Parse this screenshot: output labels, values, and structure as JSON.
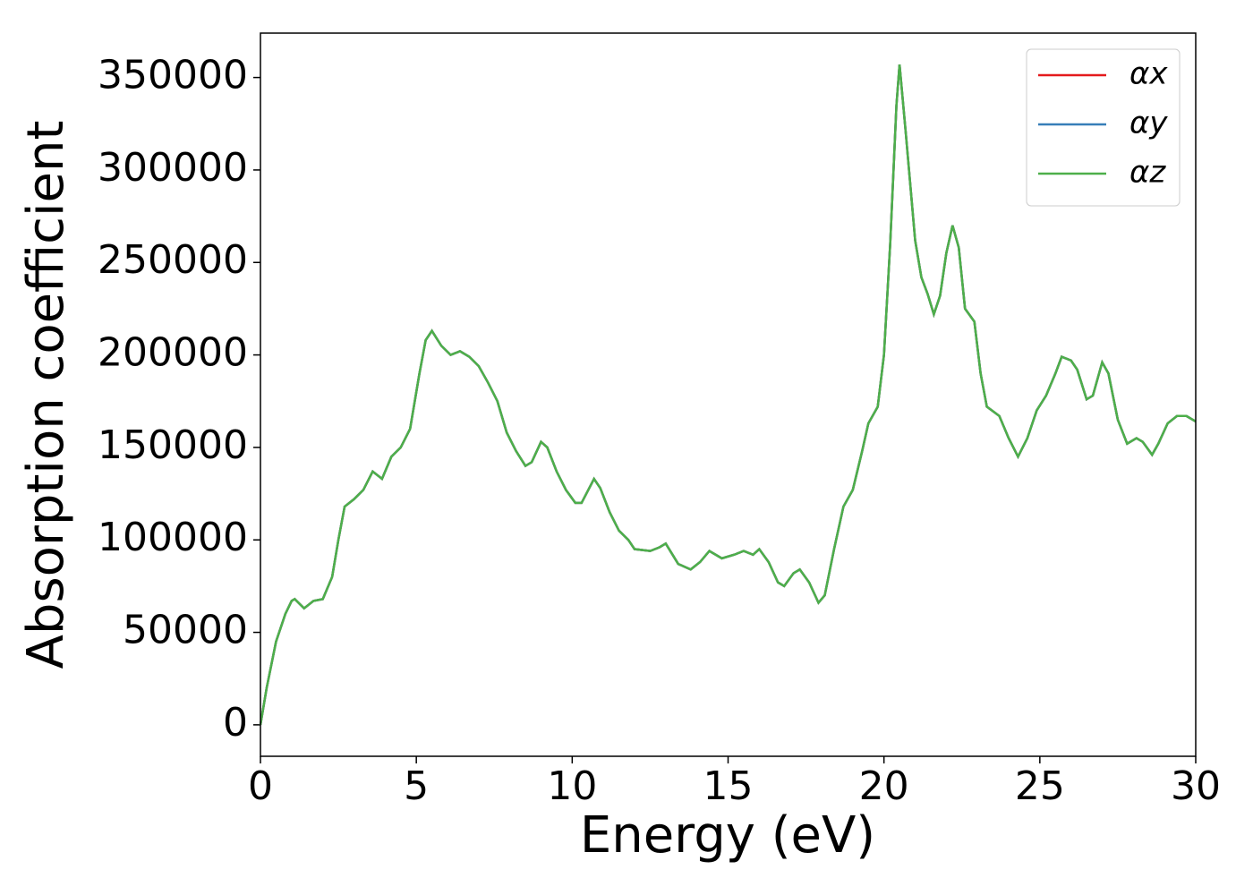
{
  "chart_data": {
    "type": "line",
    "xlabel": "Energy (eV)",
    "ylabel": "Absorption coefficient",
    "x": [
      0,
      0.2,
      0.5,
      0.8,
      1.0,
      1.1,
      1.4,
      1.7,
      2.0,
      2.3,
      2.5,
      2.7,
      3.0,
      3.3,
      3.6,
      3.9,
      4.2,
      4.5,
      4.8,
      5.1,
      5.3,
      5.5,
      5.8,
      6.1,
      6.4,
      6.7,
      7.0,
      7.3,
      7.6,
      7.9,
      8.2,
      8.5,
      8.7,
      9.0,
      9.2,
      9.5,
      9.8,
      10.1,
      10.3,
      10.7,
      10.9,
      11.2,
      11.5,
      11.8,
      12.0,
      12.5,
      12.8,
      13.0,
      13.4,
      13.8,
      14.1,
      14.4,
      14.8,
      15.2,
      15.5,
      15.8,
      16.0,
      16.3,
      16.6,
      16.8,
      17.1,
      17.3,
      17.6,
      17.9,
      18.1,
      18.4,
      18.7,
      19.0,
      19.3,
      19.5,
      19.8,
      20.0,
      20.2,
      20.4,
      20.5,
      20.7,
      21.0,
      21.2,
      21.4,
      21.6,
      21.8,
      22.0,
      22.2,
      22.4,
      22.6,
      22.9,
      23.1,
      23.3,
      23.7,
      24.0,
      24.3,
      24.6,
      24.9,
      25.2,
      25.5,
      25.7,
      26.0,
      26.2,
      26.5,
      26.7,
      27.0,
      27.2,
      27.5,
      27.8,
      28.1,
      28.3,
      28.6,
      28.8,
      29.1,
      29.4,
      29.7,
      30.0
    ],
    "series": [
      {
        "name": "αx",
        "color": "#e41a1c",
        "values": [
          0,
          20000,
          45000,
          60000,
          67000,
          68000,
          63000,
          67000,
          68000,
          80000,
          100000,
          118000,
          122000,
          127000,
          137000,
          133000,
          145000,
          150000,
          160000,
          190000,
          208000,
          213000,
          205000,
          200000,
          202000,
          199000,
          194000,
          185000,
          175000,
          158000,
          148000,
          140000,
          142000,
          153000,
          150000,
          137000,
          127000,
          120000,
          120000,
          133000,
          128000,
          115000,
          105000,
          100000,
          95000,
          94000,
          96000,
          98000,
          87000,
          84000,
          88000,
          94000,
          90000,
          92000,
          94000,
          92000,
          95000,
          88000,
          77000,
          75000,
          82000,
          84000,
          77000,
          66000,
          70000,
          95000,
          118000,
          127000,
          148000,
          163000,
          172000,
          200000,
          260000,
          335000,
          357000,
          320000,
          262000,
          242000,
          233000,
          222000,
          232000,
          255000,
          270000,
          258000,
          225000,
          218000,
          190000,
          172000,
          167000,
          155000,
          145000,
          155000,
          170000,
          178000,
          190000,
          199000,
          197000,
          192000,
          176000,
          178000,
          196000,
          190000,
          165000,
          152000,
          155000,
          153000,
          146000,
          152000,
          163000,
          167000,
          167000,
          164000
        ]
      },
      {
        "name": "αy",
        "color": "#377eb8",
        "values": [
          0,
          20000,
          45000,
          60000,
          67000,
          68000,
          63000,
          67000,
          68000,
          80000,
          100000,
          118000,
          122000,
          127000,
          137000,
          133000,
          145000,
          150000,
          160000,
          190000,
          208000,
          213000,
          205000,
          200000,
          202000,
          199000,
          194000,
          185000,
          175000,
          158000,
          148000,
          140000,
          142000,
          153000,
          150000,
          137000,
          127000,
          120000,
          120000,
          133000,
          128000,
          115000,
          105000,
          100000,
          95000,
          94000,
          96000,
          98000,
          87000,
          84000,
          88000,
          94000,
          90000,
          92000,
          94000,
          92000,
          95000,
          88000,
          77000,
          75000,
          82000,
          84000,
          77000,
          66000,
          70000,
          95000,
          118000,
          127000,
          148000,
          163000,
          172000,
          200000,
          260000,
          335000,
          357000,
          320000,
          262000,
          242000,
          233000,
          222000,
          232000,
          255000,
          270000,
          258000,
          225000,
          218000,
          190000,
          172000,
          167000,
          155000,
          145000,
          155000,
          170000,
          178000,
          190000,
          199000,
          197000,
          192000,
          176000,
          178000,
          196000,
          190000,
          165000,
          152000,
          155000,
          153000,
          146000,
          152000,
          163000,
          167000,
          167000,
          164000
        ]
      },
      {
        "name": "αz",
        "color": "#4daf4a",
        "values": [
          0,
          20000,
          45000,
          60000,
          67000,
          68000,
          63000,
          67000,
          68000,
          80000,
          100000,
          118000,
          122000,
          127000,
          137000,
          133000,
          145000,
          150000,
          160000,
          190000,
          208000,
          213000,
          205000,
          200000,
          202000,
          199000,
          194000,
          185000,
          175000,
          158000,
          148000,
          140000,
          142000,
          153000,
          150000,
          137000,
          127000,
          120000,
          120000,
          133000,
          128000,
          115000,
          105000,
          100000,
          95000,
          94000,
          96000,
          98000,
          87000,
          84000,
          88000,
          94000,
          90000,
          92000,
          94000,
          92000,
          95000,
          88000,
          77000,
          75000,
          82000,
          84000,
          77000,
          66000,
          70000,
          95000,
          118000,
          127000,
          148000,
          163000,
          172000,
          200000,
          260000,
          335000,
          357000,
          320000,
          262000,
          242000,
          233000,
          222000,
          232000,
          255000,
          270000,
          258000,
          225000,
          218000,
          190000,
          172000,
          167000,
          155000,
          145000,
          155000,
          170000,
          178000,
          190000,
          199000,
          197000,
          192000,
          176000,
          178000,
          196000,
          190000,
          165000,
          152000,
          155000,
          153000,
          146000,
          152000,
          163000,
          167000,
          167000,
          164000
        ]
      }
    ],
    "xlim": [
      0,
      30
    ],
    "xticks": [
      0,
      5,
      10,
      15,
      20,
      25,
      30
    ],
    "ylim": [
      -17000,
      374000
    ],
    "yticks": [
      0,
      50000,
      100000,
      150000,
      200000,
      250000,
      300000,
      350000
    ],
    "legend": "upper right",
    "grid": false
  }
}
